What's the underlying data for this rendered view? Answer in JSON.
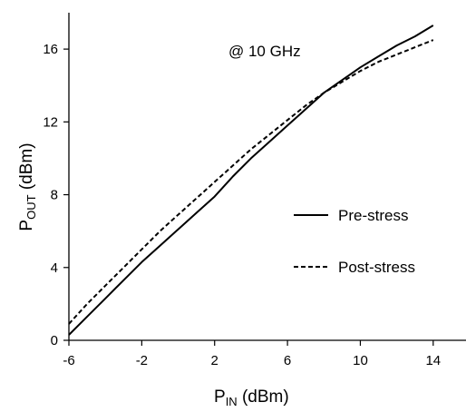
{
  "chart_data": {
    "type": "line",
    "annotation": "@ 10 GHz",
    "xlabel": {
      "main": "P",
      "sub": "IN",
      "unit": " (dBm)"
    },
    "ylabel": {
      "main": "P",
      "sub": "OUT",
      "unit": " (dBm)"
    },
    "xlim": [
      -6,
      16
    ],
    "ylim": [
      0,
      18
    ],
    "xticks": [
      -6,
      -2,
      2,
      6,
      10,
      14
    ],
    "yticks": [
      0,
      4,
      8,
      12,
      16
    ],
    "xtick_labels": [
      "-6",
      "-2",
      "2",
      "6",
      "10",
      "14"
    ],
    "ytick_labels": [
      "0",
      "4",
      "8",
      "12",
      "16"
    ],
    "grid": false,
    "legend_position": "right-middle",
    "series": [
      {
        "name": "Pre-stress",
        "style": "solid",
        "color": "#000000",
        "x": [
          -6,
          -5,
          -4,
          -3,
          -2,
          -1,
          0,
          1,
          2,
          3,
          4,
          5,
          6,
          7,
          8,
          9,
          10,
          11,
          12,
          13,
          14
        ],
        "y": [
          0.3,
          1.3,
          2.3,
          3.3,
          4.3,
          5.2,
          6.1,
          7.0,
          7.9,
          9.0,
          10.0,
          10.9,
          11.8,
          12.7,
          13.6,
          14.3,
          15.0,
          15.6,
          16.2,
          16.7,
          17.3
        ]
      },
      {
        "name": "Post-stress",
        "style": "dashed",
        "color": "#000000",
        "x": [
          -6,
          -5,
          -4,
          -3,
          -2,
          -1,
          0,
          1,
          2,
          3,
          4,
          5,
          6,
          7,
          8,
          9,
          10,
          11,
          12,
          13,
          14
        ],
        "y": [
          0.9,
          2.0,
          3.0,
          4.0,
          5.0,
          6.0,
          6.9,
          7.8,
          8.7,
          9.6,
          10.5,
          11.3,
          12.1,
          12.9,
          13.6,
          14.2,
          14.8,
          15.3,
          15.7,
          16.1,
          16.5
        ]
      }
    ]
  }
}
